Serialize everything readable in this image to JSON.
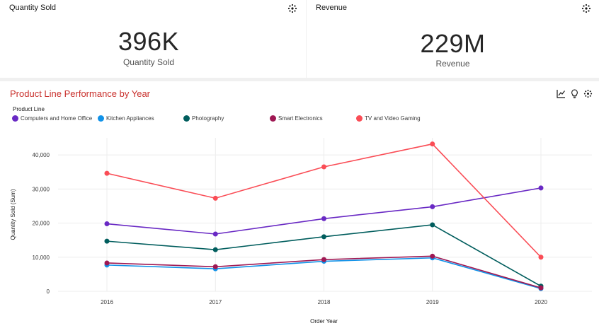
{
  "kpi_quantity": {
    "title": "Quantity Sold",
    "value": "396K",
    "label": "Quantity Sold",
    "menu_icon": "gear-icon"
  },
  "kpi_revenue": {
    "title": "Revenue",
    "value": "229M",
    "label": "Revenue",
    "menu_icon": "gear-icon"
  },
  "chart_panel": {
    "title": "Product Line Performance by Year",
    "tools": [
      "line-chart-icon",
      "lightbulb-icon",
      "gear-icon"
    ],
    "legend_title": "Product Line"
  },
  "colors": {
    "title_red": "#c9302c",
    "grid": "#ececec"
  },
  "chart_data": {
    "type": "line",
    "title": "Product Line Performance by Year",
    "xlabel": "Order Year",
    "ylabel": "Quantity Sold (Sum)",
    "x": [
      "2016",
      "2017",
      "2018",
      "2019",
      "2020"
    ],
    "ylim": [
      0,
      45000
    ],
    "yticks": [
      0,
      10000,
      20000,
      30000,
      40000
    ],
    "ytick_labels": [
      "0",
      "10,000",
      "20,000",
      "30,000",
      "40,000"
    ],
    "legend_position": "top-left",
    "grid": true,
    "series": [
      {
        "name": "Computers and Home Office",
        "color": "#6929c4",
        "values": [
          19800,
          16800,
          21300,
          24800,
          30300
        ]
      },
      {
        "name": "Kitchen Appliances",
        "color": "#1192e8",
        "values": [
          7700,
          6600,
          8800,
          9800,
          800
        ]
      },
      {
        "name": "Photography",
        "color": "#005d5d",
        "values": [
          14700,
          12200,
          16000,
          19500,
          1500
        ]
      },
      {
        "name": "Smart Electronics",
        "color": "#9f1853",
        "values": [
          8300,
          7200,
          9300,
          10300,
          1000
        ]
      },
      {
        "name": "TV and Video Gaming",
        "color": "#fa4d56",
        "values": [
          34600,
          27300,
          36500,
          43200,
          10000
        ]
      }
    ]
  }
}
